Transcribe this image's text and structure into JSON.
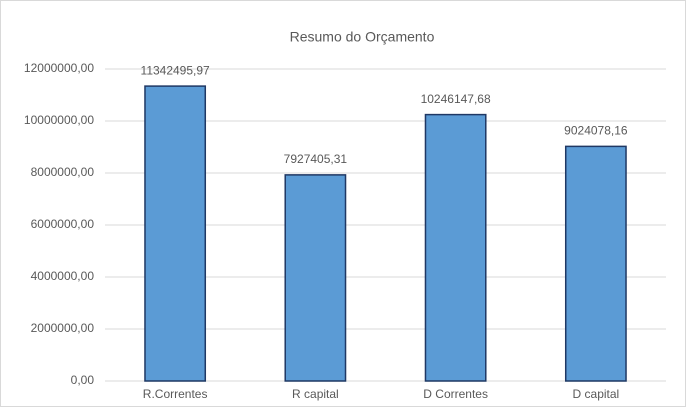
{
  "chart_data": {
    "type": "bar",
    "title": "Resumo do Orçamento",
    "categories": [
      "R.Correntes",
      "R capital",
      "D Correntes",
      "D capital"
    ],
    "values": [
      11342495.97,
      7927405.31,
      10246147.68,
      9024078.16
    ],
    "value_labels": [
      "11342495,97",
      "7927405,31",
      "10246147,68",
      "9024078,16"
    ],
    "color": "#5b9bd5",
    "ylim": [
      0,
      12000000
    ],
    "yticks": [
      {
        "value": 0,
        "label": "0,00"
      },
      {
        "value": 2000000,
        "label": "2000000,00"
      },
      {
        "value": 4000000,
        "label": "4000000,00"
      },
      {
        "value": 6000000,
        "label": "6000000,00"
      },
      {
        "value": 8000000,
        "label": "8000000,00"
      },
      {
        "value": 10000000,
        "label": "10000000,00"
      },
      {
        "value": 12000000,
        "label": "12000000,00"
      }
    ],
    "grid": true
  }
}
